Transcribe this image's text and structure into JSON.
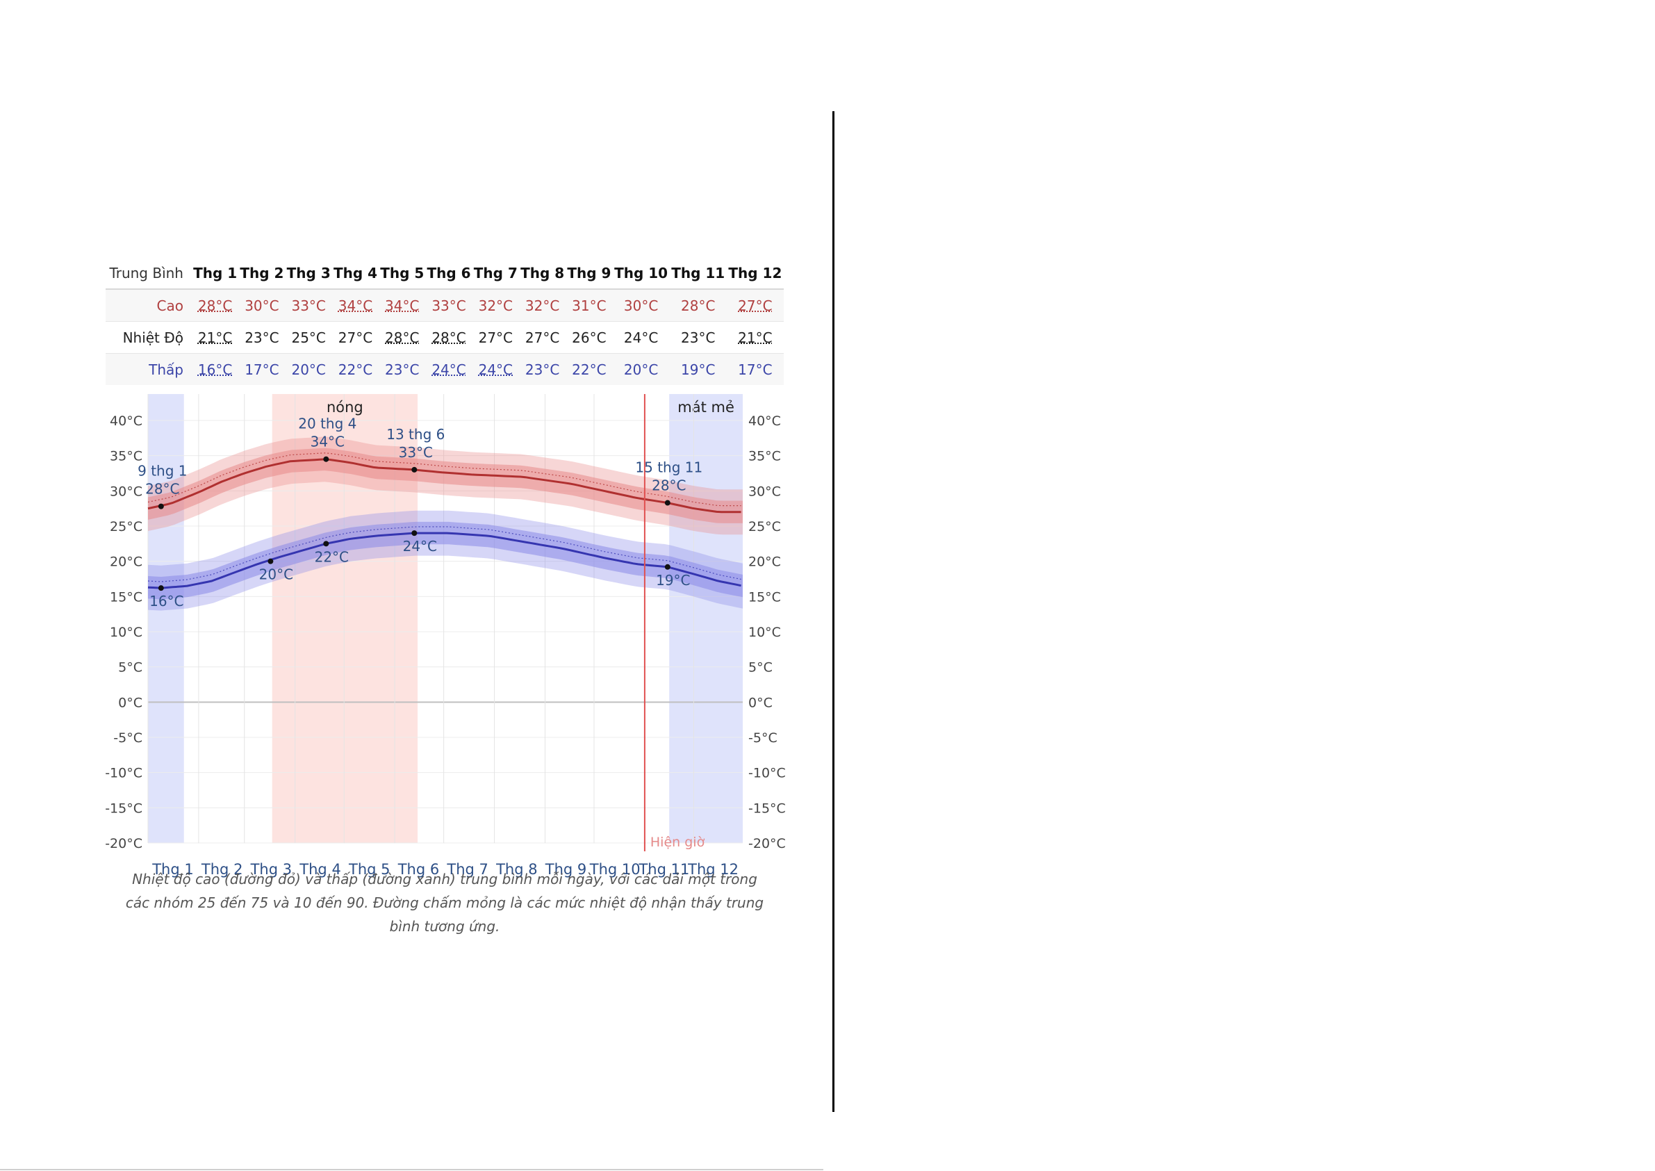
{
  "table": {
    "headers": [
      "Trung Bình",
      "Thg 1",
      "Thg 2",
      "Thg 3",
      "Thg 4",
      "Thg 5",
      "Thg 6",
      "Thg 7",
      "Thg 8",
      "Thg 9",
      "Thg 10",
      "Thg 11",
      "Thg 12"
    ],
    "rows": [
      {
        "label": "Cao",
        "values": [
          "28°C",
          "30°C",
          "33°C",
          "34°C",
          "34°C",
          "33°C",
          "32°C",
          "32°C",
          "31°C",
          "30°C",
          "28°C",
          "27°C"
        ]
      },
      {
        "label": "Nhiệt Độ",
        "values": [
          "21°C",
          "23°C",
          "25°C",
          "27°C",
          "28°C",
          "28°C",
          "27°C",
          "27°C",
          "26°C",
          "24°C",
          "23°C",
          "21°C"
        ]
      },
      {
        "label": "Thấp",
        "values": [
          "16°C",
          "17°C",
          "20°C",
          "22°C",
          "23°C",
          "24°C",
          "24°C",
          "23°C",
          "22°C",
          "20°C",
          "19°C",
          "17°C"
        ]
      }
    ]
  },
  "chart_data": {
    "type": "line",
    "x_months": [
      "Thg 1",
      "Thg 2",
      "Thg 3",
      "Thg 4",
      "Thg 5",
      "Thg 6",
      "Thg 7",
      "Thg 8",
      "Thg 9",
      "Thg 10",
      "Thg 11",
      "Thg 12"
    ],
    "y_ticks": [
      "40°C",
      "35°C",
      "30°C",
      "25°C",
      "20°C",
      "15°C",
      "10°C",
      "5°C",
      "0°C",
      "-5°C",
      "-10°C",
      "-15°C",
      "-20°C"
    ],
    "ylim": [
      -20,
      40
    ],
    "series": [
      {
        "id": "high",
        "color": "#b03030",
        "band_color": "#e88a8a",
        "points": [
          [
            1,
            27.5
          ],
          [
            15,
            28.2
          ],
          [
            32,
            29.8
          ],
          [
            46,
            31.3
          ],
          [
            60,
            32.5
          ],
          [
            74,
            33.5
          ],
          [
            88,
            34.2
          ],
          [
            110,
            34.5
          ],
          [
            125,
            34.0
          ],
          [
            140,
            33.3
          ],
          [
            164,
            33.0
          ],
          [
            182,
            32.6
          ],
          [
            200,
            32.3
          ],
          [
            230,
            32.0
          ],
          [
            260,
            31.0
          ],
          [
            280,
            30.0
          ],
          [
            300,
            29.0
          ],
          [
            319,
            28.3
          ],
          [
            335,
            27.5
          ],
          [
            350,
            27.0
          ],
          [
            365,
            27.0
          ]
        ]
      },
      {
        "id": "low",
        "color": "#3535b0",
        "band_color": "#8a8ae8",
        "points": [
          [
            1,
            16.3
          ],
          [
            9,
            16.2
          ],
          [
            25,
            16.5
          ],
          [
            40,
            17.2
          ],
          [
            55,
            18.5
          ],
          [
            68,
            19.6
          ],
          [
            80,
            20.5
          ],
          [
            95,
            21.5
          ],
          [
            110,
            22.5
          ],
          [
            125,
            23.2
          ],
          [
            140,
            23.6
          ],
          [
            164,
            24.0
          ],
          [
            185,
            24.0
          ],
          [
            210,
            23.6
          ],
          [
            230,
            22.8
          ],
          [
            255,
            21.8
          ],
          [
            280,
            20.5
          ],
          [
            300,
            19.6
          ],
          [
            319,
            19.2
          ],
          [
            335,
            18.2
          ],
          [
            350,
            17.2
          ],
          [
            365,
            16.5
          ]
        ]
      }
    ],
    "shaded_periods": [
      {
        "label": "",
        "start_day": 1,
        "end_day": 23,
        "color": "#dfe3fb"
      },
      {
        "label": "nóng",
        "start_day": 77,
        "end_day": 166,
        "color": "#fde3e0"
      },
      {
        "label": "mát mẻ",
        "start_day": 320,
        "end_day": 365,
        "color": "#dfe3fb"
      }
    ],
    "now_marker": {
      "label": "Hiện giờ",
      "day": 305,
      "color": "#e05050"
    },
    "annotations": [
      {
        "date": "9 thg 1",
        "value": "28°C",
        "day": 9,
        "temp": 27.8,
        "series": "high",
        "pos": "above"
      },
      {
        "date": "",
        "value": "16°C",
        "day": 9,
        "temp": 16.2,
        "series": "low",
        "pos": "below"
      },
      {
        "date": "",
        "value": "20°C",
        "day": 76,
        "temp": 20.0,
        "series": "low",
        "pos": "below"
      },
      {
        "date": "20 thg 4",
        "value": "34°C",
        "day": 110,
        "temp": 34.5,
        "series": "high",
        "pos": "above"
      },
      {
        "date": "",
        "value": "22°C",
        "day": 110,
        "temp": 22.5,
        "series": "low",
        "pos": "below"
      },
      {
        "date": "13 thg 6",
        "value": "33°C",
        "day": 164,
        "temp": 33.0,
        "series": "high",
        "pos": "above"
      },
      {
        "date": "",
        "value": "24°C",
        "day": 164,
        "temp": 24.0,
        "series": "low",
        "pos": "below"
      },
      {
        "date": "15 thg 11",
        "value": "28°C",
        "day": 319,
        "temp": 28.3,
        "series": "high",
        "pos": "above"
      },
      {
        "date": "",
        "value": "19°C",
        "day": 319,
        "temp": 19.2,
        "series": "low",
        "pos": "below"
      }
    ]
  },
  "caption": "Nhiệt độ cao (đường đỏ) và thấp (đường xanh) trung bình mỗi ngày, với các dải một trong các nhóm 25 đến 75 và 10 đến 90. Đường chấm mỏng là các mức nhiệt độ nhận thấy trung bình tương ứng."
}
